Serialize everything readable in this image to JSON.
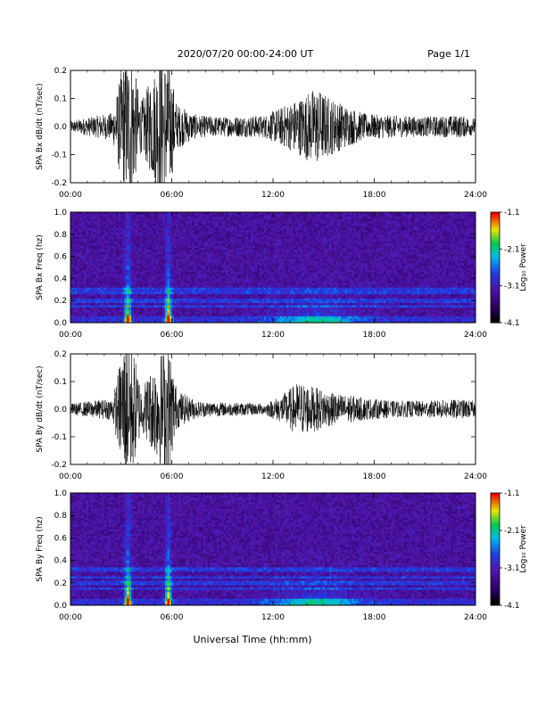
{
  "header": {
    "title": "2020/07/20  00:00-24:00 UT",
    "page": "Page 1/1"
  },
  "xlabel": "Universal Time (hh:mm)",
  "colors": {
    "trace": "#000000"
  },
  "chart_data": [
    {
      "type": "line",
      "ylabel": "SPA Bx dB/dt (nT/sec)",
      "xlim": [
        "00:00",
        "24:00"
      ],
      "ylim": [
        -0.2,
        0.2
      ],
      "x_ticks": [
        "00:00",
        "06:00",
        "12:00",
        "18:00",
        "24:00"
      ],
      "y_ticks": [
        "-0.2",
        "-0.1",
        "0.0",
        "0.1",
        "0.2"
      ],
      "envelope": {
        "note_units": "x in hours UT, y in nT/sec half-amplitude",
        "x": [
          0,
          2.5,
          3.2,
          3.6,
          4.2,
          5.3,
          5.8,
          6.3,
          7.5,
          9,
          11.5,
          12.5,
          13.5,
          14.5,
          15.5,
          16.5,
          17.5,
          19,
          21,
          23,
          24
        ],
        "amp": [
          0.02,
          0.05,
          0.25,
          0.25,
          0.09,
          0.25,
          0.25,
          0.08,
          0.04,
          0.035,
          0.04,
          0.07,
          0.1,
          0.14,
          0.1,
          0.07,
          0.045,
          0.04,
          0.035,
          0.04,
          0.03
        ]
      }
    },
    {
      "type": "heatmap",
      "ylabel": "SPA Bx Freq (hz)",
      "xlim": [
        "00:00",
        "24:00"
      ],
      "ylim": [
        0.0,
        1.0
      ],
      "x_ticks": [
        "00:00",
        "06:00",
        "12:00",
        "18:00",
        "24:00"
      ],
      "y_ticks": [
        "0.0",
        "0.2",
        "0.4",
        "0.6",
        "0.8",
        "1.0"
      ],
      "colorbar": {
        "label": "Log₁₀ Power",
        "ticks": [
          "-1.1",
          "-2.1",
          "-3.1",
          "-4.1"
        ],
        "range": [
          -4.1,
          -1.1
        ]
      },
      "bursts_hours": [
        3.4,
        5.8
      ],
      "lines_hz": [
        0.3,
        0.27,
        0.2,
        0.15
      ]
    },
    {
      "type": "line",
      "ylabel": "SPA By dB/dt (nT/sec)",
      "xlim": [
        "00:00",
        "24:00"
      ],
      "ylim": [
        -0.2,
        0.2
      ],
      "x_ticks": [
        "00:00",
        "06:00",
        "12:00",
        "18:00",
        "24:00"
      ],
      "y_ticks": [
        "-0.2",
        "-0.1",
        "0.0",
        "0.1",
        "0.2"
      ],
      "envelope": {
        "x": [
          0,
          2.5,
          3.2,
          3.6,
          4.2,
          5.3,
          5.8,
          6.3,
          7.5,
          9,
          11.5,
          12.5,
          13.5,
          14.5,
          15.5,
          16.5,
          17.5,
          19,
          21,
          23,
          24
        ],
        "amp": [
          0.02,
          0.04,
          0.25,
          0.25,
          0.08,
          0.2,
          0.25,
          0.07,
          0.03,
          0.025,
          0.02,
          0.05,
          0.1,
          0.08,
          0.06,
          0.05,
          0.04,
          0.03,
          0.03,
          0.035,
          0.03
        ]
      }
    },
    {
      "type": "heatmap",
      "ylabel": "SPA By Freq (hz)",
      "xlim": [
        "00:00",
        "24:00"
      ],
      "ylim": [
        0.0,
        1.0
      ],
      "x_ticks": [
        "00:00",
        "06:00",
        "12:00",
        "18:00",
        "24:00"
      ],
      "y_ticks": [
        "0.0",
        "0.2",
        "0.4",
        "0.6",
        "0.8",
        "1.0"
      ],
      "colorbar": {
        "label": "Log₁₀ Power",
        "ticks": [
          "-1.1",
          "-2.1",
          "-3.1",
          "-4.1"
        ],
        "range": [
          -4.1,
          -1.1
        ]
      },
      "bursts_hours": [
        3.4,
        5.8
      ],
      "lines_hz": [
        0.32,
        0.25,
        0.2,
        0.15
      ]
    }
  ]
}
